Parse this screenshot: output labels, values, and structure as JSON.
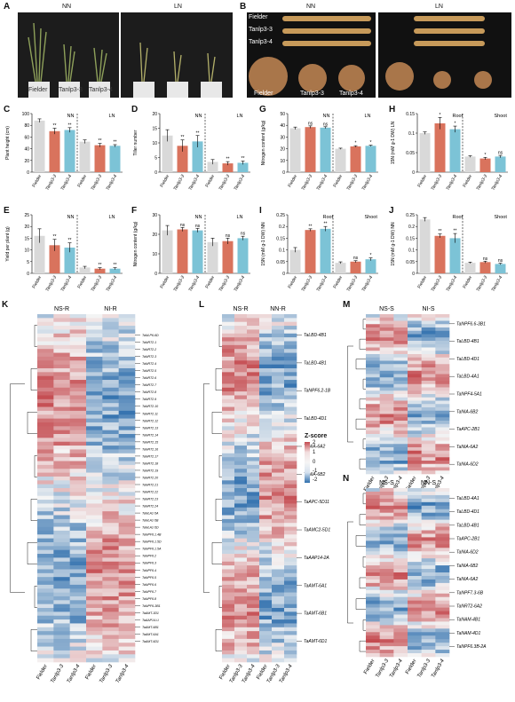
{
  "panels": {
    "A": {
      "label": "A",
      "conditions": [
        "NN",
        "LN"
      ],
      "genotypes": [
        "Fielder",
        "Tanlp3-3",
        "Tanlp3-4"
      ]
    },
    "B": {
      "label": "B",
      "conditions": [
        "NN",
        "LN"
      ],
      "rows": [
        "Fielder",
        "Tanlp3-3",
        "Tanlp3-4"
      ],
      "bottom": [
        "Fielder",
        "Tanlp3-3",
        "Tanlp3-4"
      ]
    }
  },
  "bar_panels": [
    {
      "id": "C",
      "label": "C",
      "ylabel": "Plant height (cm)",
      "ylim": [
        0,
        100
      ],
      "ticks": [
        0,
        20,
        40,
        60,
        80,
        100
      ],
      "groups": [
        "NN",
        "LN"
      ],
      "values": [
        [
          88,
          70,
          72
        ],
        [
          52,
          46,
          45
        ]
      ],
      "errors": [
        [
          3,
          5,
          4
        ],
        [
          3,
          3,
          2
        ]
      ],
      "sig": [
        [
          "",
          "**",
          "**"
        ],
        [
          "",
          "**",
          "**"
        ]
      ],
      "x": [
        "Fielder",
        "Tanlp3-3",
        "Tanlp3-4",
        "Fielder",
        "Tanlp3-3",
        "Tanlp3-4"
      ]
    },
    {
      "id": "D",
      "label": "D",
      "ylabel": "Tiller number",
      "ylim": [
        0,
        20
      ],
      "ticks": [
        0,
        5,
        10,
        15,
        20
      ],
      "groups": [
        "NN",
        "LN"
      ],
      "values": [
        [
          12.5,
          9,
          10.5
        ],
        [
          3.5,
          3,
          3.2
        ]
      ],
      "errors": [
        [
          2,
          2,
          2
        ],
        [
          0.8,
          0.6,
          0.6
        ]
      ],
      "sig": [
        [
          "",
          "**",
          "**"
        ],
        [
          "",
          "**",
          "**"
        ]
      ],
      "x": [
        "Fielder",
        "Tanlp3-3",
        "Tanlp3-4",
        "Fielder",
        "Tanlp3-3",
        "Tanlp3-4"
      ]
    },
    {
      "id": "G",
      "label": "G",
      "ylabel": "Nitrogen content (g/kg)",
      "ylim": [
        0,
        50
      ],
      "ticks": [
        0,
        10,
        20,
        30,
        40,
        50
      ],
      "groups": [
        "NN",
        "LN"
      ],
      "values": [
        [
          37.5,
          38.5,
          38
        ],
        [
          20,
          22,
          22.5
        ]
      ],
      "errors": [
        [
          1,
          1,
          0.8
        ],
        [
          0.5,
          0.6,
          0.5
        ]
      ],
      "sig": [
        [
          "",
          "ns",
          "ns"
        ],
        [
          "",
          "*",
          "*"
        ]
      ],
      "x": [
        "Fielder",
        "Tanlp3-3",
        "Tanlp3-4",
        "Fielder",
        "Tanlp3-3",
        "Tanlp3-4"
      ]
    },
    {
      "id": "H",
      "label": "H",
      "ylabel": "15N (mM g-1 DW) LN",
      "ylim": [
        0,
        0.15
      ],
      "ticks": [
        0,
        0.05,
        0.1,
        0.15
      ],
      "groups": [
        "Root",
        "Shoot"
      ],
      "values": [
        [
          0.1,
          0.125,
          0.11
        ],
        [
          0.04,
          0.035,
          0.04
        ]
      ],
      "errors": [
        [
          0.003,
          0.015,
          0.008
        ],
        [
          0.002,
          0.003,
          0.003
        ]
      ],
      "sig": [
        [
          "",
          "*",
          "*"
        ],
        [
          "",
          "*",
          "ns"
        ]
      ],
      "x": [
        "Fielder",
        "Tanlp3-3",
        "Tanlp3-4",
        "Fielder",
        "Tanlp3-3",
        "Tanlp3-4"
      ]
    },
    {
      "id": "E",
      "label": "E",
      "ylabel": "Yield per plant (g)",
      "ylim": [
        0,
        25
      ],
      "ticks": [
        0,
        5,
        10,
        15,
        20,
        25
      ],
      "groups": [
        "NN",
        "LN"
      ],
      "values": [
        [
          16,
          12,
          11
        ],
        [
          2.5,
          2,
          2
        ]
      ],
      "errors": [
        [
          3,
          2.5,
          2
        ],
        [
          0.5,
          0.4,
          0.4
        ]
      ],
      "sig": [
        [
          "",
          "**",
          "**"
        ],
        [
          "",
          "**",
          "**"
        ]
      ],
      "x": [
        "Fielder",
        "Tanlp3-3",
        "Tanlp3-4",
        "Fielder",
        "Tanlp3-3",
        "Tanlp3-4"
      ]
    },
    {
      "id": "F",
      "label": "F",
      "ylabel": "Nitrogen content (g/kg)",
      "ylim": [
        0,
        30
      ],
      "ticks": [
        0,
        10,
        20,
        30
      ],
      "groups": [
        "NN",
        "LN"
      ],
      "values": [
        [
          22,
          22.5,
          22
        ],
        [
          16,
          16.5,
          18
        ]
      ],
      "errors": [
        [
          2.5,
          1,
          1
        ],
        [
          2,
          1.5,
          1
        ]
      ],
      "sig": [
        [
          "",
          "ns",
          "ns"
        ],
        [
          "",
          "ns",
          "ns"
        ]
      ],
      "x": [
        "Fielder",
        "Tanlp3-3",
        "Tanlp3-4",
        "Fielder",
        "Tanlp3-3",
        "Tanlp3-4"
      ]
    },
    {
      "id": "I",
      "label": "I",
      "ylabel": "15N (mM g-1 DW) NN",
      "ylim": [
        0,
        0.25
      ],
      "ticks": [
        0,
        0.05,
        0.1,
        0.15,
        0.2,
        0.25
      ],
      "groups": [
        "Root",
        "Shoot"
      ],
      "values": [
        [
          0.1,
          0.185,
          0.19
        ],
        [
          0.045,
          0.05,
          0.06
        ]
      ],
      "errors": [
        [
          0.01,
          0.005,
          0.01
        ],
        [
          0.004,
          0.004,
          0.006
        ]
      ],
      "sig": [
        [
          "",
          "**",
          "**"
        ],
        [
          "",
          "ns",
          "*"
        ]
      ],
      "x": [
        "Fielder",
        "Tanlp3-3",
        "Tanlp3-4",
        "Fielder",
        "Tanlp3-3",
        "Tanlp3-4"
      ]
    },
    {
      "id": "J",
      "label": "J",
      "ylabel": "15N (mM g-1 DW) NN",
      "ylim": [
        0,
        0.25
      ],
      "ticks": [
        0,
        0.05,
        0.1,
        0.15,
        0.2,
        0.25
      ],
      "groups": [
        "Root",
        "Shoot"
      ],
      "values": [
        [
          0.23,
          0.16,
          0.15
        ],
        [
          0.045,
          0.048,
          0.04
        ]
      ],
      "errors": [
        [
          0.008,
          0.008,
          0.02
        ],
        [
          0.003,
          0.004,
          0.003
        ]
      ],
      "sig": [
        [
          "",
          "**",
          "**"
        ],
        [
          "",
          "ns",
          "ns"
        ]
      ],
      "x": [
        "Fielder",
        "Tanlp3-3",
        "Tanlp3-4",
        "Fielder",
        "Tanlp3-3",
        "Tanlp3-4"
      ]
    }
  ],
  "colors": {
    "fielder": "#d9d9d9",
    "tanlp33": "#d9735d",
    "tanlp34": "#7cc3d6",
    "hm_red": "#c44a4f",
    "hm_blue": "#2f6fad"
  },
  "heatmaps": [
    {
      "id": "K",
      "label": "K",
      "cond1": "NS-R",
      "cond2": "NI-R",
      "x": [
        "Fielder",
        "Tanlp3-3",
        "Tanlp3-4",
        "Fielder",
        "Tanlp3-3",
        "Tanlp3-4"
      ],
      "genes": [
        "TaNLP6-6D",
        "TaNRT2.1",
        "TaNRT2.2",
        "TaNRT2.3",
        "TaNRT2.4",
        "TaNRT2.5",
        "TaNRT2.6",
        "TaNRT2.7",
        "TaNRT2.8",
        "TaNRT2.9",
        "TaNRT2.10",
        "TaNRT2.11",
        "TaNRT2.12",
        "TaNRT2.13",
        "TaNRT2.14",
        "TaNRT2.15",
        "TaNRT2.16",
        "TaNRT2.17",
        "TaNRT2.18",
        "TaNRT2.19",
        "TaNRT2.20",
        "TaNRT2.21",
        "TaNRT2.22",
        "TaNRT2.23",
        "TaNRT2.24",
        "TaNLA1-5A",
        "TaNLA1-5B",
        "TaNLA1-5D",
        "TaNPF6.1.4B",
        "TaNPF6.1.5D",
        "TaNPF6.1.5A",
        "TaNPF6.2",
        "TaNPF6.3",
        "TaNPF6.4",
        "TaNPF6.5",
        "TaNPF6.6",
        "TaNPF6.7",
        "TaNPF6.8",
        "TaNPF6-3B1",
        "TaAMT-3D1",
        "TaAAP14-U",
        "TaAMT-6B1",
        "TaAMT-6A1",
        "TaAMT-6D1"
      ]
    },
    {
      "id": "L",
      "label": "L",
      "cond1": "NS-R",
      "cond2": "NN-R",
      "x": [
        "Fielder",
        "Tanlp3-3",
        "Tanlp3-4",
        "Fielder",
        "Tanlp3-3",
        "Tanlp3-4"
      ],
      "genes": [
        "TaLBD-4B1",
        "TaLBD-4B1",
        "TaNPF6.2-1B",
        "TaLBD-4D1",
        "TaNIA-6A2",
        "TaNIA-6B2",
        "TaAPC-5D11",
        "TaAMC2-5D1",
        "TaAAP14-2A",
        "TaAMT-6A1",
        "TaAMT-6B1",
        "TaAMT-6D1"
      ]
    },
    {
      "id": "M",
      "label": "M",
      "cond1": "NS-S",
      "cond2": "NI-S",
      "x": [
        "Fielder",
        "Tanlp3-3",
        "Tanlp3-4",
        "Fielder",
        "Tanlp3-3",
        "Tanlp3-4"
      ],
      "genes": [
        "TaNPF6.6-3B1",
        "TaLBD-4B1",
        "TaLBD-4D1",
        "TaLBD-4A1",
        "TaNPF4-5A1",
        "TaNIA-6B2",
        "TaAPC-2B1",
        "TaNIA-6A2",
        "TaNIA-6D2"
      ]
    },
    {
      "id": "N",
      "label": "N",
      "cond1": "NS-S",
      "cond2": "NN-S",
      "x": [
        "Fielder",
        "Tanlp3-3",
        "Tanlp3-4",
        "Fielder",
        "Tanlp3-3",
        "Tanlp3-4"
      ],
      "genes": [
        "TaLBD-4A1",
        "TaLBD-4D1",
        "TaLBD-4B1",
        "TaAPC-2B1",
        "TaNIA-6D2",
        "TaNIA-6B2",
        "TaNIA-6A2",
        "TaNPF7.3-6B",
        "TaNRT2-6A2",
        "TaNAM-4B1",
        "TaNAM-4D1",
        "TaNPF6.3B-2A"
      ]
    }
  ],
  "zscore": {
    "title": "Z-score",
    "ticks": [
      "2",
      "1",
      "0",
      "-1",
      "-2"
    ]
  }
}
